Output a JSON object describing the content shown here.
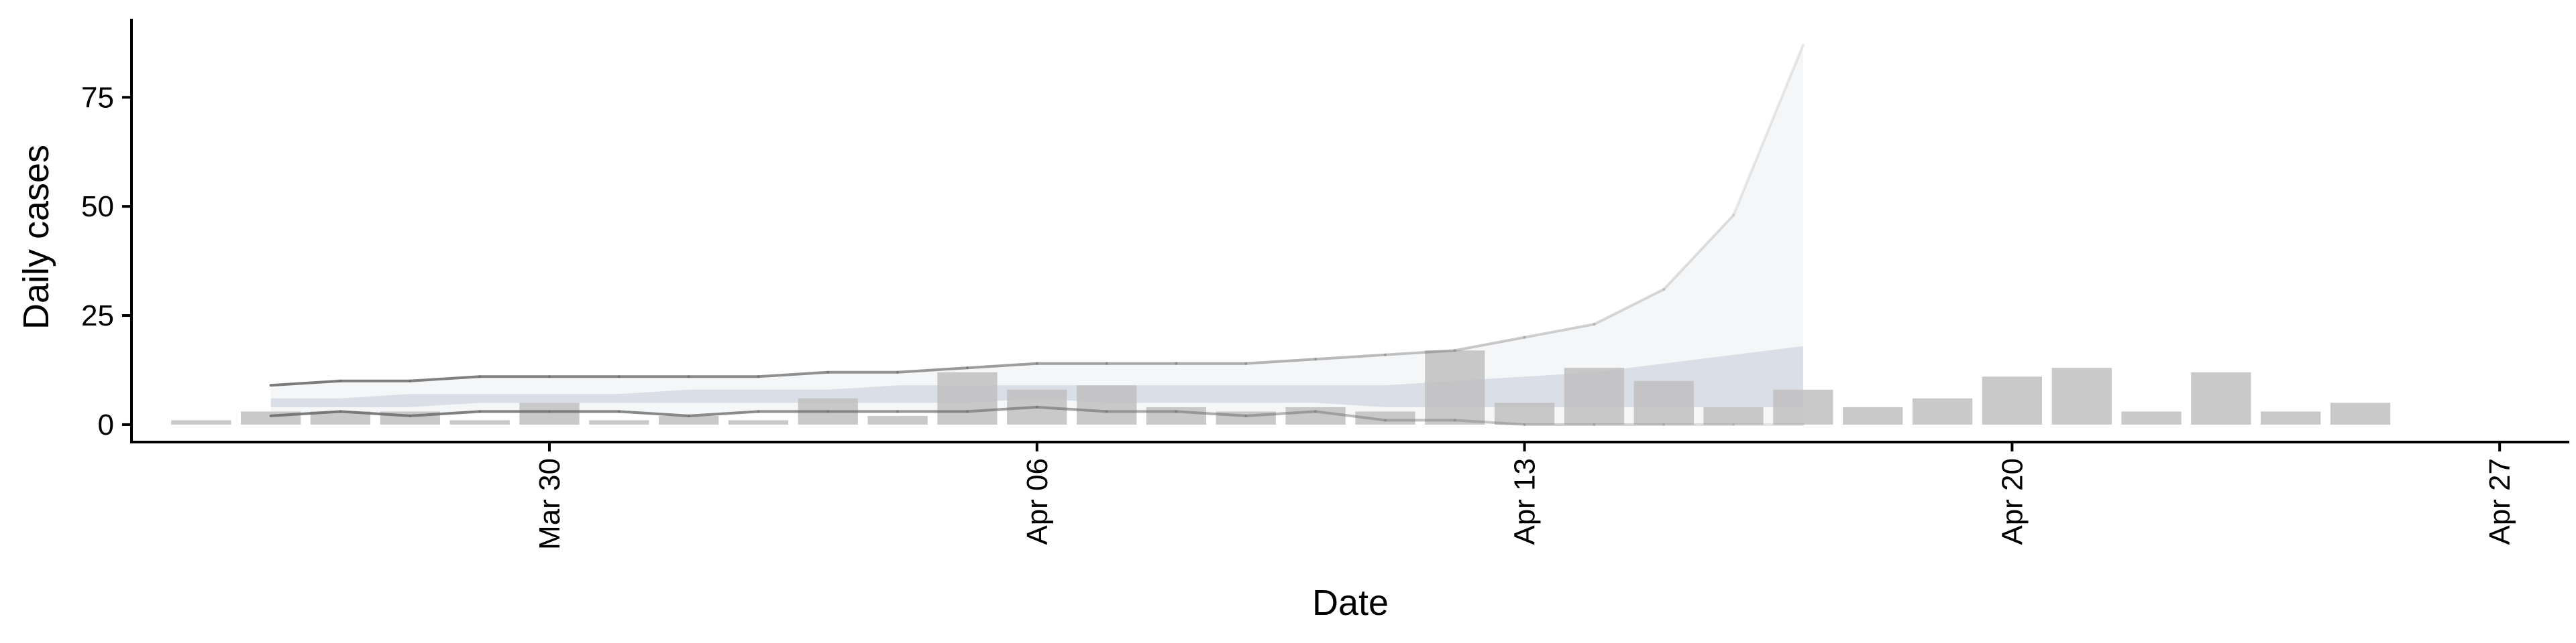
{
  "chart_data": {
    "type": "bar",
    "title": "",
    "xlabel": "Date",
    "ylabel": "Daily cases",
    "ylim": [
      -4,
      93
    ],
    "xlim": [
      "2020-03-24",
      "2020-04-28"
    ],
    "grid": false,
    "legend": "none",
    "y_ticks": [
      0,
      25,
      50,
      75
    ],
    "x_ticks": [
      {
        "date": "2020-03-30",
        "label": "Mar 30"
      },
      {
        "date": "2020-04-06",
        "label": "Apr 06"
      },
      {
        "date": "2020-04-13",
        "label": "Apr 13"
      },
      {
        "date": "2020-04-20",
        "label": "Apr 20"
      },
      {
        "date": "2020-04-27",
        "label": "Apr 27"
      }
    ],
    "bars": {
      "name": "",
      "color": "#bfbfbf",
      "dates": [
        "2020-03-25",
        "2020-03-26",
        "2020-03-27",
        "2020-03-28",
        "2020-03-29",
        "2020-03-30",
        "2020-03-31",
        "2020-04-01",
        "2020-04-02",
        "2020-04-03",
        "2020-04-04",
        "2020-04-05",
        "2020-04-06",
        "2020-04-07",
        "2020-04-08",
        "2020-04-09",
        "2020-04-10",
        "2020-04-11",
        "2020-04-12",
        "2020-04-13",
        "2020-04-14",
        "2020-04-15",
        "2020-04-16",
        "2020-04-17",
        "2020-04-18",
        "2020-04-19",
        "2020-04-20",
        "2020-04-21",
        "2020-04-22",
        "2020-04-23",
        "2020-04-24",
        "2020-04-25",
        "2020-04-26"
      ],
      "values": [
        1,
        3,
        3,
        3,
        1,
        5,
        1,
        2,
        1,
        6,
        2,
        12,
        8,
        9,
        4,
        3,
        4,
        3,
        17,
        5,
        13,
        10,
        4,
        8,
        4,
        6,
        11,
        13,
        3,
        12,
        3,
        5,
        null
      ]
    },
    "estimate": {
      "dates": [
        "2020-03-26",
        "2020-03-27",
        "2020-03-28",
        "2020-03-29",
        "2020-03-30",
        "2020-03-31",
        "2020-04-01",
        "2020-04-02",
        "2020-04-03",
        "2020-04-04",
        "2020-04-05",
        "2020-04-06",
        "2020-04-07",
        "2020-04-08",
        "2020-04-09",
        "2020-04-10",
        "2020-04-11",
        "2020-04-12",
        "2020-04-13",
        "2020-04-14",
        "2020-04-15",
        "2020-04-16",
        "2020-04-17"
      ],
      "upper": [
        9,
        10,
        10,
        11,
        11,
        11,
        11,
        11,
        12,
        12,
        13,
        14,
        14,
        14,
        14,
        15,
        16,
        17,
        20,
        23,
        31,
        48,
        87
      ],
      "lower": [
        2,
        3,
        2,
        3,
        3,
        3,
        2,
        3,
        3,
        3,
        3,
        4,
        3,
        3,
        2,
        3,
        1,
        1,
        0,
        0,
        0,
        0,
        0
      ],
      "inner_upper": [
        6,
        6,
        7,
        7,
        7,
        7,
        8,
        8,
        8,
        9,
        9,
        9,
        9,
        9,
        9,
        9,
        9,
        10,
        11,
        12,
        14,
        16,
        18
      ],
      "inner_lower": [
        4,
        4,
        4,
        5,
        5,
        5,
        5,
        5,
        5,
        5,
        5,
        6,
        5,
        5,
        5,
        5,
        4,
        4,
        4,
        4,
        4,
        4,
        4
      ],
      "color_line": "#6e6e6e",
      "color_band": "#aab2c8"
    }
  }
}
